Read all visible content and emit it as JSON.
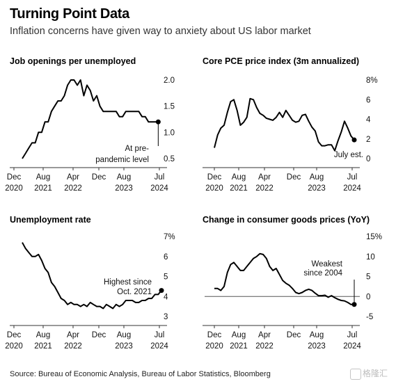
{
  "header": {
    "title": "Turning Point Data",
    "subtitle": "Inflation concerns have given way to anxiety about US labor market"
  },
  "footer": {
    "source": "Source: Bureau of Economic Analysis, Bureau of Labor Statistics, Bloomberg",
    "watermark": "格隆汇"
  },
  "chart_data": [
    {
      "id": "job_openings",
      "type": "line",
      "title": "Job openings per unemployed",
      "x_tick_labels": [
        [
          "Dec",
          "2020"
        ],
        [
          "Aug",
          "2021"
        ],
        [
          "Apr",
          "2022"
        ],
        [
          "Dec",
          ""
        ],
        [
          "Aug",
          "2023"
        ],
        [
          "Jul",
          "2024"
        ]
      ],
      "x_ticks": [
        0,
        8,
        16,
        24,
        32,
        43
      ],
      "xlim": [
        0,
        43
      ],
      "y_ticks": [
        0.5,
        1.0,
        1.5,
        2.0
      ],
      "y_tick_labels": [
        "0.5",
        "1.0",
        "1.5",
        "2.0"
      ],
      "ylim": [
        0.5,
        2.0
      ],
      "x": [
        0,
        1,
        2,
        3,
        4,
        5,
        6,
        7,
        8,
        9,
        10,
        11,
        12,
        13,
        14,
        15,
        16,
        17,
        18,
        19,
        20,
        21,
        22,
        23,
        24,
        25,
        26,
        27,
        28,
        29,
        30,
        31,
        32,
        33,
        34,
        35,
        36,
        37,
        38,
        39,
        40,
        41,
        42
      ],
      "values": [
        0.5,
        0.6,
        0.7,
        0.8,
        0.8,
        1.0,
        1.0,
        1.2,
        1.2,
        1.4,
        1.5,
        1.6,
        1.6,
        1.7,
        1.9,
        2.0,
        2.0,
        1.9,
        2.0,
        1.7,
        1.9,
        1.8,
        1.6,
        1.7,
        1.5,
        1.4,
        1.4,
        1.4,
        1.4,
        1.4,
        1.3,
        1.3,
        1.4,
        1.4,
        1.4,
        1.4,
        1.4,
        1.3,
        1.3,
        1.2,
        1.2,
        1.2,
        1.2
      ],
      "end_marker": true,
      "annotation": "At pre-pandemic level"
    },
    {
      "id": "core_pce",
      "type": "line",
      "title": "Core PCE price index (3m annualized)",
      "x_tick_labels": [
        [
          "Dec",
          "2020"
        ],
        [
          "Aug",
          "2021"
        ],
        [
          "Apr",
          "2022"
        ],
        [
          "Dec",
          ""
        ],
        [
          "Aug",
          "2023"
        ],
        [
          "Jul",
          "2024"
        ]
      ],
      "x_ticks": [
        0,
        8,
        16,
        24,
        32,
        43
      ],
      "xlim": [
        0,
        43
      ],
      "y_ticks": [
        0,
        2,
        4,
        6,
        8
      ],
      "y_tick_labels": [
        "0",
        "2",
        "4",
        "6",
        "8%"
      ],
      "ylim": [
        0,
        8
      ],
      "x": [
        0,
        1,
        2,
        3,
        4,
        5,
        6,
        7,
        8,
        9,
        10,
        11,
        12,
        13,
        14,
        15,
        16,
        17,
        18,
        19,
        20,
        21,
        22,
        23,
        24,
        25,
        26,
        27,
        28,
        29,
        30,
        31,
        32,
        33,
        34,
        35,
        36,
        37,
        38,
        39,
        40,
        41,
        42,
        43
      ],
      "values": [
        1.1,
        2.4,
        3.1,
        3.4,
        4.7,
        5.8,
        6.0,
        4.9,
        3.4,
        3.7,
        4.2,
        6.1,
        6.0,
        5.2,
        4.6,
        4.4,
        4.1,
        4.0,
        3.9,
        4.2,
        4.7,
        4.2,
        4.9,
        4.4,
        3.9,
        3.7,
        3.8,
        4.4,
        4.5,
        3.8,
        3.2,
        2.8,
        1.7,
        1.3,
        1.3,
        1.4,
        1.4,
        0.8,
        1.8,
        2.7,
        3.8,
        3.1,
        2.3,
        1.9
      ],
      "end_marker": true,
      "annotation": "July est."
    },
    {
      "id": "unemployment",
      "type": "line",
      "title": "Unemployment rate",
      "x_tick_labels": [
        [
          "Dec",
          "2020"
        ],
        [
          "Aug",
          "2021"
        ],
        [
          "Apr",
          "2022"
        ],
        [
          "Dec",
          ""
        ],
        [
          "Aug",
          "2023"
        ],
        [
          "Jul",
          "2024"
        ]
      ],
      "x_ticks": [
        0,
        8,
        16,
        24,
        32,
        43
      ],
      "xlim": [
        0,
        43
      ],
      "y_ticks": [
        3,
        4,
        5,
        6,
        7
      ],
      "y_tick_labels": [
        "3",
        "4",
        "5",
        "6",
        "7%"
      ],
      "ylim": [
        3,
        7
      ],
      "x": [
        0,
        1,
        2,
        3,
        4,
        5,
        6,
        7,
        8,
        9,
        10,
        11,
        12,
        13,
        14,
        15,
        16,
        17,
        18,
        19,
        20,
        21,
        22,
        23,
        24,
        25,
        26,
        27,
        28,
        29,
        30,
        31,
        32,
        33,
        34,
        35,
        36,
        37,
        38,
        39,
        40,
        41,
        42,
        43
      ],
      "values": [
        6.7,
        6.4,
        6.2,
        6.0,
        6.0,
        6.1,
        5.8,
        5.4,
        5.2,
        4.7,
        4.5,
        4.2,
        3.9,
        3.8,
        3.6,
        3.7,
        3.6,
        3.6,
        3.5,
        3.6,
        3.5,
        3.7,
        3.6,
        3.5,
        3.5,
        3.4,
        3.6,
        3.5,
        3.4,
        3.6,
        3.5,
        3.6,
        3.8,
        3.8,
        3.8,
        3.7,
        3.7,
        3.8,
        3.8,
        3.9,
        3.9,
        4.1,
        4.1,
        4.3
      ],
      "end_marker": true,
      "annotation": "Highest since Oct. 2021"
    },
    {
      "id": "consumer_goods",
      "type": "line",
      "title": "Change in consumer goods prices (YoY)",
      "x_tick_labels": [
        [
          "Dec",
          "2020"
        ],
        [
          "Aug",
          "2021"
        ],
        [
          "Apr",
          "2022"
        ],
        [
          "Dec",
          ""
        ],
        [
          "Aug",
          "2023"
        ],
        [
          "Jul",
          "2024"
        ]
      ],
      "x_ticks": [
        0,
        8,
        16,
        24,
        32,
        43
      ],
      "xlim": [
        0,
        43
      ],
      "y_ticks": [
        -5,
        0,
        5,
        10,
        15
      ],
      "y_tick_labels": [
        "-5",
        "0",
        "5",
        "10",
        "15%"
      ],
      "ylim": [
        -5,
        15
      ],
      "zero_line": true,
      "x": [
        0,
        1,
        2,
        3,
        4,
        5,
        6,
        7,
        8,
        9,
        10,
        11,
        12,
        13,
        14,
        15,
        16,
        17,
        18,
        19,
        20,
        21,
        22,
        23,
        24,
        25,
        26,
        27,
        28,
        29,
        30,
        31,
        32,
        33,
        34,
        35,
        36,
        37,
        38,
        39,
        40,
        41,
        42,
        43
      ],
      "values": [
        2.0,
        2.0,
        1.5,
        2.5,
        6.0,
        8.0,
        8.5,
        7.5,
        6.5,
        6.5,
        7.5,
        8.5,
        9.5,
        10.0,
        10.7,
        10.5,
        9.5,
        7.5,
        6.5,
        7.0,
        5.5,
        4.0,
        3.3,
        2.8,
        2.0,
        1.0,
        0.7,
        1.0,
        1.5,
        1.8,
        1.5,
        0.8,
        0.2,
        0.2,
        0.3,
        -0.2,
        0.2,
        -0.3,
        -0.7,
        -1.0,
        -1.1,
        -1.5,
        -2.0,
        -2.0
      ],
      "end_marker": true,
      "annotation": "Weakest since 2004"
    }
  ]
}
